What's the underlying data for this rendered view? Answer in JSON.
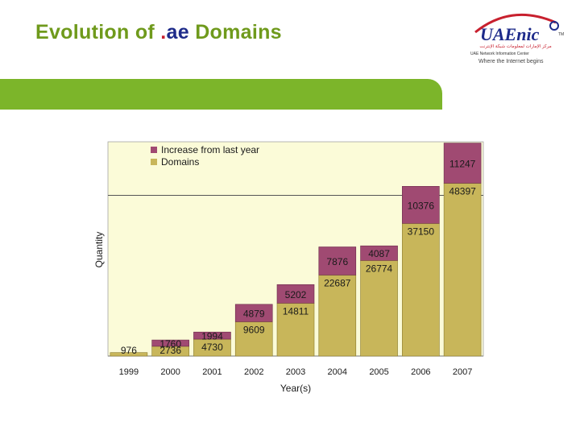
{
  "header": {
    "title_prefix": "Evolution of ",
    "title_dot": ".",
    "title_ae": "ae",
    "title_suffix": " Domains",
    "logo_text": "UAEnic",
    "logo_tm": "TM",
    "logo_arabic": "مركز الإمارات لمعلومات شبكة الإنترنت",
    "logo_org": "UAE Network Information Center",
    "logo_tagline": "Where the Internet begins",
    "colors": {
      "title_green": "#6f9a1c",
      "band_green": "#7cb52a",
      "dot_red": "#c8202e",
      "ae_blue": "#1e2b8a"
    }
  },
  "chart_data": {
    "type": "bar",
    "stacked": true,
    "categories": [
      "1999",
      "2000",
      "2001",
      "2002",
      "2003",
      "2004",
      "2005",
      "2006",
      "2007"
    ],
    "series": [
      {
        "name": "Domains",
        "values": [
          976,
          2736,
          4730,
          9609,
          14811,
          22687,
          26774,
          37150,
          48397
        ],
        "color": "#c8b65a"
      },
      {
        "name": "Increase from last year",
        "values": [
          null,
          1760,
          1994,
          4879,
          5202,
          7876,
          4087,
          10376,
          11247
        ],
        "color": "#a04a72"
      }
    ],
    "data_labels": {
      "Domains": [
        "976",
        "2736",
        "4730",
        "9609",
        "14811",
        "22687",
        "26774",
        "37150",
        "48397"
      ],
      "Increase from last year": [
        "",
        "1760",
        "1994",
        "4879",
        "5202",
        "7876",
        "4087",
        "10376",
        "11247"
      ]
    },
    "xlabel": "Year(s)",
    "ylabel": "Quantity",
    "ylim": [
      0,
      60000
    ],
    "gridline": 45000,
    "legend_position": "top-left",
    "plot_background": "#fbfbd8"
  }
}
